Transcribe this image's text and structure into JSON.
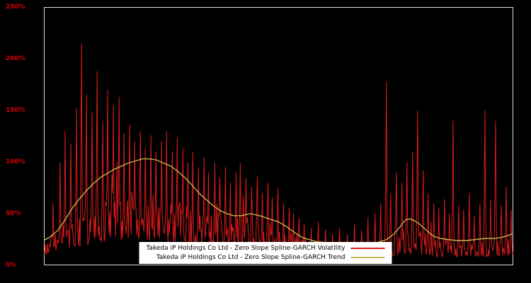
{
  "colors": {
    "background": "#000000",
    "axis_label": "#d40000",
    "frame": "#dddddd",
    "legend_bg": "#ffffff",
    "legend_text": "#000000",
    "volatility": "#de1b1b",
    "trend": "#c3b34c"
  },
  "chart_data": {
    "type": "line",
    "title": "",
    "xlabel": "",
    "ylabel": "",
    "ylim": [
      0,
      250
    ],
    "y_tick_labels": [
      "0%",
      "50%",
      "100%",
      "150%",
      "200%",
      "250%"
    ],
    "x_tick_labels": [],
    "grid": false,
    "legend_position": "bottom-center",
    "noise_seed": 9,
    "series": [
      {
        "name": "Takeda iP Holdings Co Ltd - Zero Slope Spline-GARCH Volatility",
        "color": "#de1b1b",
        "style": "spiky-line",
        "base_points": [
          [
            0,
            18
          ],
          [
            3,
            25
          ],
          [
            6,
            30
          ],
          [
            9,
            35
          ],
          [
            12,
            40
          ],
          [
            15,
            42
          ],
          [
            18,
            45
          ],
          [
            21,
            45
          ],
          [
            24,
            42
          ],
          [
            27,
            40
          ],
          [
            30,
            38
          ],
          [
            33,
            35
          ],
          [
            36,
            32
          ],
          [
            39,
            30
          ],
          [
            42,
            30
          ],
          [
            46,
            28
          ],
          [
            50,
            25
          ],
          [
            53,
            22
          ],
          [
            56,
            18
          ],
          [
            60,
            14
          ],
          [
            64,
            12
          ],
          [
            68,
            12
          ],
          [
            72,
            14
          ],
          [
            75,
            18
          ],
          [
            78,
            20
          ],
          [
            81,
            18
          ],
          [
            84,
            15
          ],
          [
            87,
            14
          ],
          [
            90,
            15
          ],
          [
            93,
            15
          ],
          [
            96,
            16
          ],
          [
            100,
            18
          ]
        ],
        "spikes": [
          [
            2,
            60
          ],
          [
            3.5,
            100
          ],
          [
            4.5,
            130
          ],
          [
            5.7,
            118
          ],
          [
            6.9,
            152
          ],
          [
            8,
            215
          ],
          [
            9,
            165
          ],
          [
            10.3,
            148
          ],
          [
            11.3,
            188
          ],
          [
            12.5,
            140
          ],
          [
            13.6,
            170
          ],
          [
            14.8,
            155
          ],
          [
            16,
            163
          ],
          [
            17,
            128
          ],
          [
            18.3,
            136
          ],
          [
            19.3,
            120
          ],
          [
            20.5,
            130
          ],
          [
            21.6,
            114
          ],
          [
            22.8,
            126
          ],
          [
            23.8,
            110
          ],
          [
            25,
            120
          ],
          [
            26.1,
            130
          ],
          [
            27.3,
            110
          ],
          [
            28.4,
            124
          ],
          [
            29.6,
            114
          ],
          [
            30.6,
            100
          ],
          [
            31.7,
            110
          ],
          [
            32.9,
            95
          ],
          [
            34.1,
            105
          ],
          [
            35.1,
            90
          ],
          [
            36.4,
            100
          ],
          [
            37.4,
            85
          ],
          [
            38.6,
            95
          ],
          [
            39.7,
            80
          ],
          [
            40.9,
            90
          ],
          [
            41.9,
            99
          ],
          [
            43.1,
            85
          ],
          [
            44.2,
            76
          ],
          [
            45.4,
            86
          ],
          [
            46.5,
            70
          ],
          [
            47.7,
            80
          ],
          [
            48.7,
            66
          ],
          [
            49.9,
            75
          ],
          [
            51,
            60
          ],
          [
            52.2,
            56
          ],
          [
            53.2,
            50
          ],
          [
            54.4,
            46
          ],
          [
            55.5,
            40
          ],
          [
            57,
            36
          ],
          [
            58.5,
            42
          ],
          [
            60,
            35
          ],
          [
            61.5,
            30
          ],
          [
            63,
            36
          ],
          [
            64.6,
            30
          ],
          [
            66.1,
            40
          ],
          [
            67.6,
            34
          ],
          [
            69.1,
            46
          ],
          [
            70.6,
            50
          ],
          [
            71.8,
            60
          ],
          [
            72.9,
            178
          ],
          [
            73.9,
            70
          ],
          [
            75.1,
            90
          ],
          [
            76.3,
            80
          ],
          [
            77.4,
            100
          ],
          [
            78.6,
            110
          ],
          [
            79.6,
            150
          ],
          [
            80.8,
            92
          ],
          [
            81.9,
            70
          ],
          [
            83.1,
            60
          ],
          [
            84.2,
            56
          ],
          [
            85.4,
            64
          ],
          [
            86.4,
            50
          ],
          [
            87.2,
            140
          ],
          [
            88.4,
            58
          ],
          [
            89.4,
            54
          ],
          [
            90.6,
            70
          ],
          [
            91.7,
            48
          ],
          [
            92.9,
            60
          ],
          [
            94,
            150
          ],
          [
            95.2,
            64
          ],
          [
            96.2,
            140
          ],
          [
            97.4,
            58
          ],
          [
            98.5,
            76
          ],
          [
            99.6,
            54
          ]
        ]
      },
      {
        "name": "Takeda iP Holdings Co Ltd - Zero Slope Spline-GARCH Trend",
        "color": "#c3b34c",
        "style": "smooth-line",
        "points": [
          [
            0,
            24
          ],
          [
            1.5,
            28
          ],
          [
            3,
            34
          ],
          [
            4.5,
            44
          ],
          [
            6,
            55
          ],
          [
            7.5,
            64
          ],
          [
            9,
            72
          ],
          [
            10.5,
            79
          ],
          [
            12,
            85
          ],
          [
            13.5,
            89
          ],
          [
            15,
            93
          ],
          [
            16.5,
            96
          ],
          [
            18,
            99
          ],
          [
            19.5,
            101
          ],
          [
            21,
            103
          ],
          [
            22.5,
            103
          ],
          [
            24,
            102
          ],
          [
            25.5,
            99
          ],
          [
            27,
            96
          ],
          [
            28.5,
            91
          ],
          [
            30,
            85
          ],
          [
            31.5,
            78
          ],
          [
            33,
            70
          ],
          [
            34.5,
            64
          ],
          [
            36,
            58
          ],
          [
            37.5,
            53
          ],
          [
            39,
            50
          ],
          [
            40.5,
            48
          ],
          [
            42,
            48
          ],
          [
            44,
            50
          ],
          [
            46,
            48
          ],
          [
            48,
            45
          ],
          [
            50,
            42
          ],
          [
            51.5,
            38
          ],
          [
            53,
            33
          ],
          [
            55,
            27
          ],
          [
            58,
            23
          ],
          [
            60,
            22
          ],
          [
            62,
            21
          ],
          [
            65,
            20
          ],
          [
            68,
            20
          ],
          [
            71,
            22
          ],
          [
            73,
            25
          ],
          [
            74.5,
            30
          ],
          [
            76,
            38
          ],
          [
            77,
            44
          ],
          [
            78,
            45
          ],
          [
            79,
            43
          ],
          [
            80,
            40
          ],
          [
            81,
            36
          ],
          [
            82,
            32
          ],
          [
            83,
            28
          ],
          [
            84.5,
            26
          ],
          [
            86,
            25
          ],
          [
            88,
            24
          ],
          [
            90,
            24
          ],
          [
            92,
            25
          ],
          [
            94,
            26
          ],
          [
            96,
            26
          ],
          [
            97.5,
            27
          ],
          [
            99,
            29
          ],
          [
            100,
            31
          ]
        ]
      }
    ]
  }
}
